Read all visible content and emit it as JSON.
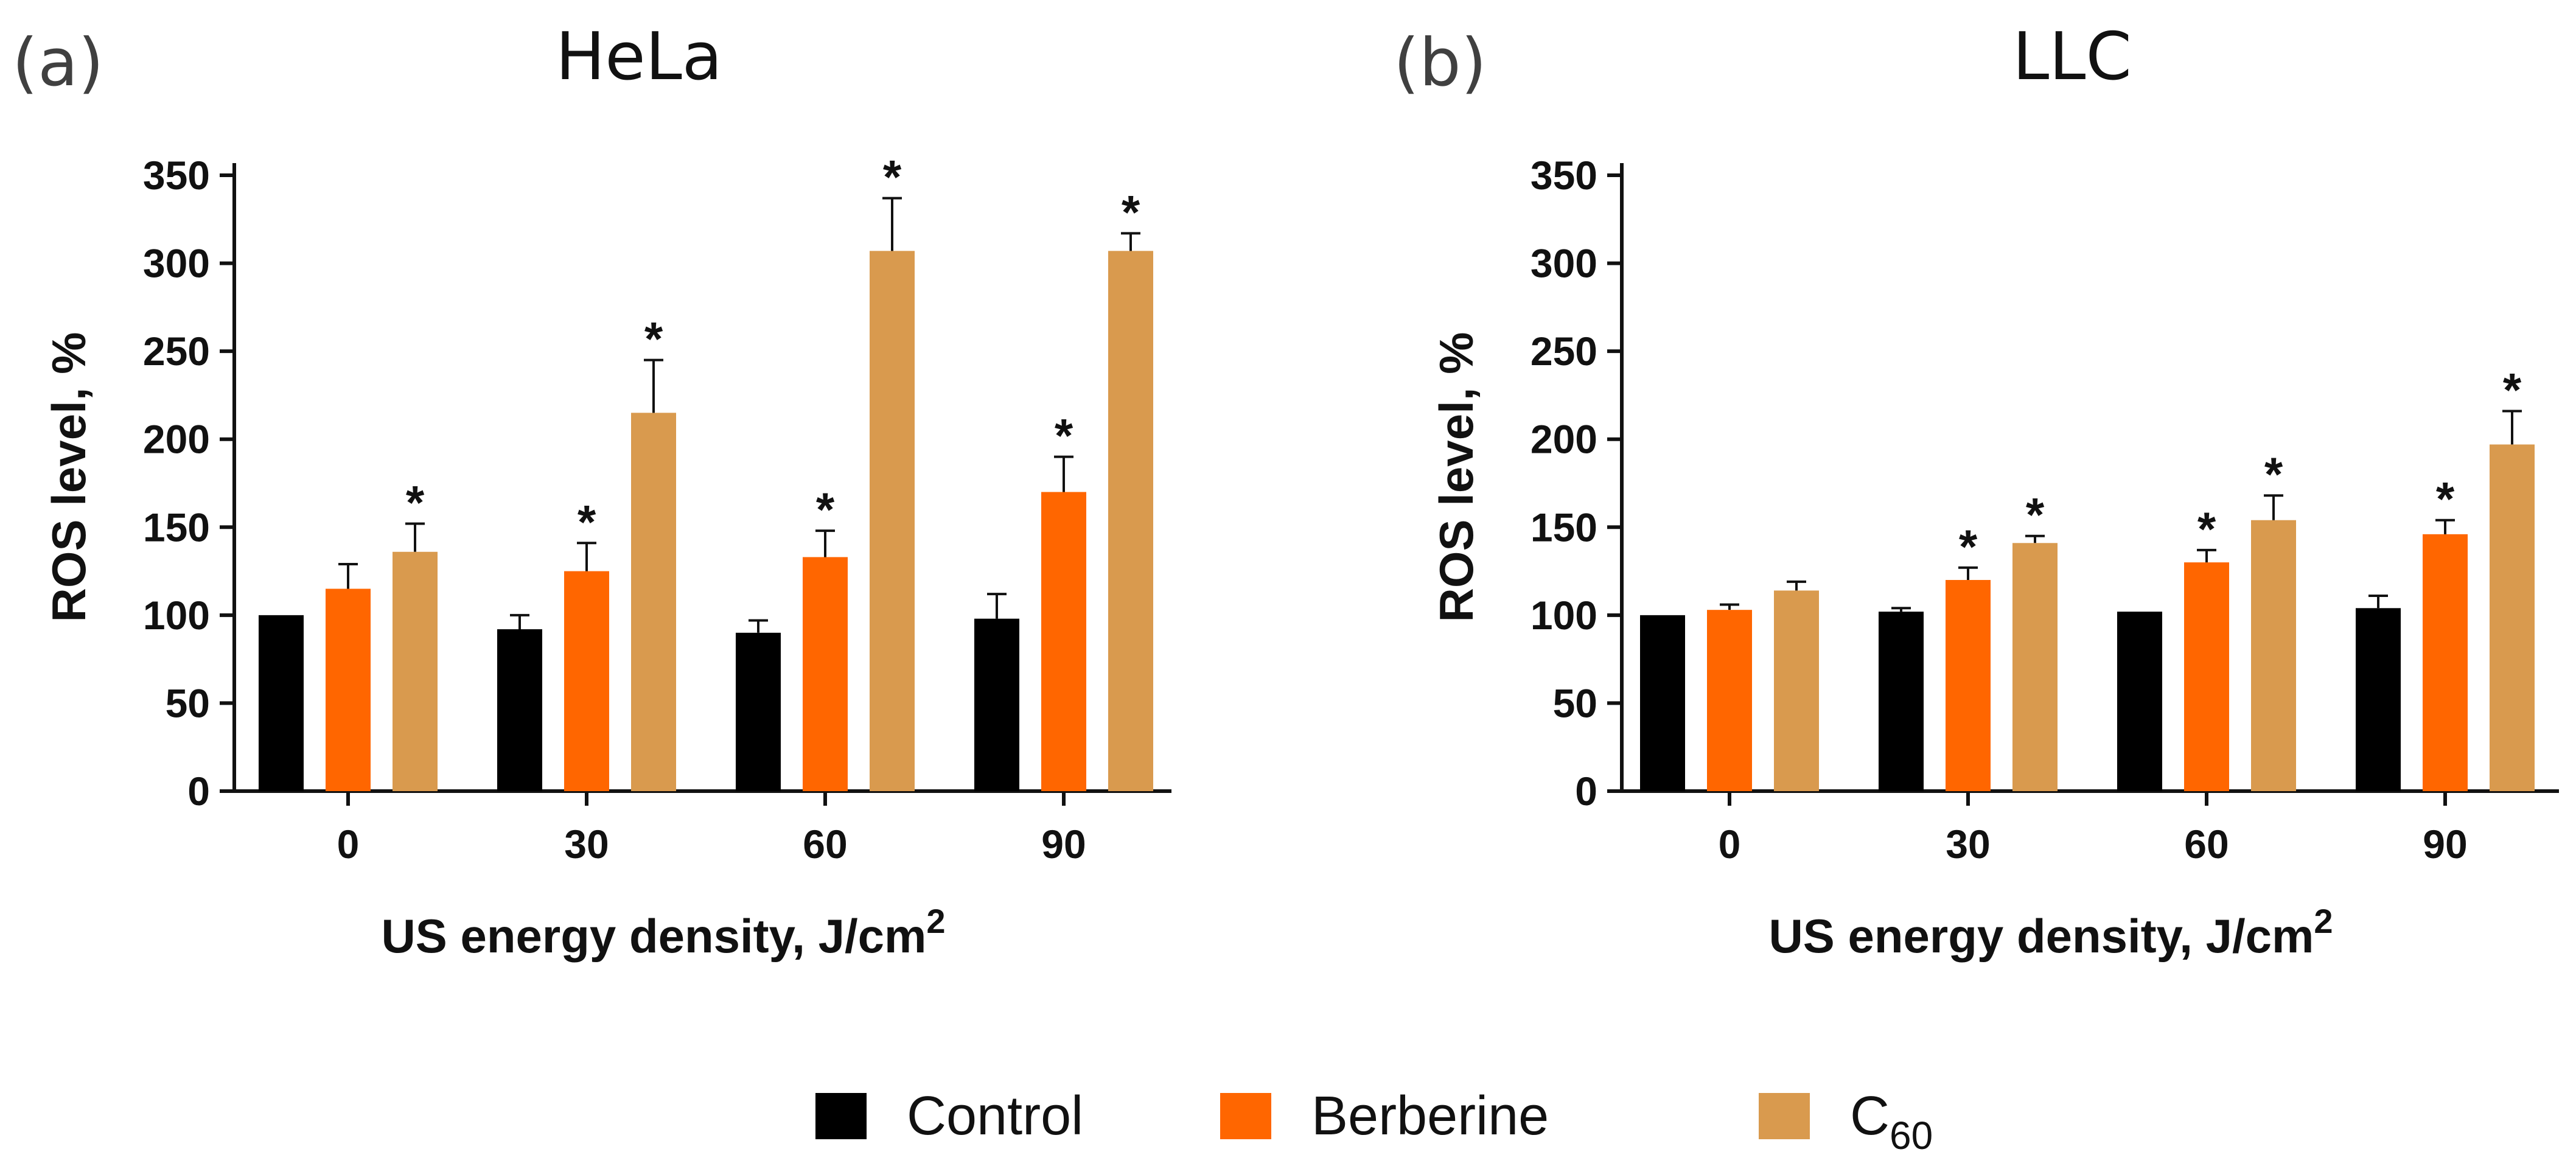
{
  "chart_data": [
    {
      "type": "bar",
      "panel_label": "(a)",
      "title": "HeLa",
      "categories": [
        "0",
        "30",
        "60",
        "90"
      ],
      "xlabel": "US energy density, J/cm",
      "xlabel_sup": "2",
      "ylabel": "ROS level, %",
      "ylim": [
        0,
        350
      ],
      "yticks": [
        "0",
        "50",
        "100",
        "150",
        "200",
        "250",
        "300",
        "350"
      ],
      "grid": false,
      "series": [
        {
          "name": "Control",
          "values": [
            100,
            92,
            90,
            98
          ],
          "errors": [
            0,
            8,
            7,
            14
          ],
          "significant": [
            false,
            false,
            false,
            false
          ]
        },
        {
          "name": "Berberine",
          "values": [
            115,
            125,
            133,
            170
          ],
          "errors": [
            14,
            16,
            15,
            20
          ],
          "significant": [
            false,
            true,
            true,
            true
          ]
        },
        {
          "name": "C60",
          "values": [
            136,
            215,
            307,
            307
          ],
          "errors": [
            16,
            30,
            30,
            10
          ],
          "significant": [
            true,
            true,
            true,
            true
          ]
        }
      ],
      "significance_marker": "*"
    },
    {
      "type": "bar",
      "panel_label": "(b)",
      "title": "LLC",
      "categories": [
        "0",
        "30",
        "60",
        "90"
      ],
      "xlabel": "US energy density, J/cm",
      "xlabel_sup": "2",
      "ylabel": "ROS level, %",
      "ylim": [
        0,
        350
      ],
      "yticks": [
        "0",
        "50",
        "100",
        "150",
        "200",
        "250",
        "300",
        "350"
      ],
      "grid": false,
      "series": [
        {
          "name": "Control",
          "values": [
            100,
            102,
            102,
            104
          ],
          "errors": [
            0,
            2,
            0,
            7
          ],
          "significant": [
            false,
            false,
            false,
            false
          ]
        },
        {
          "name": "Berberine",
          "values": [
            103,
            120,
            130,
            146
          ],
          "errors": [
            3,
            7,
            7,
            8
          ],
          "significant": [
            false,
            true,
            true,
            true
          ]
        },
        {
          "name": "C60",
          "values": [
            114,
            141,
            154,
            197
          ],
          "errors": [
            5,
            4,
            14,
            19
          ],
          "significant": [
            false,
            true,
            true,
            true
          ]
        }
      ],
      "significance_marker": "*"
    }
  ],
  "legend": {
    "placement": "bottom-center",
    "items": [
      {
        "label": "Control",
        "color": "#000000"
      },
      {
        "label": "Berberine",
        "color": "#ff6600"
      },
      {
        "label": "C",
        "subscript": "60",
        "color": "#d99a4e"
      }
    ]
  },
  "colors": {
    "control": "#000000",
    "berberine": "#ff6600",
    "c60": "#d99a4e",
    "axis": "#111111"
  }
}
